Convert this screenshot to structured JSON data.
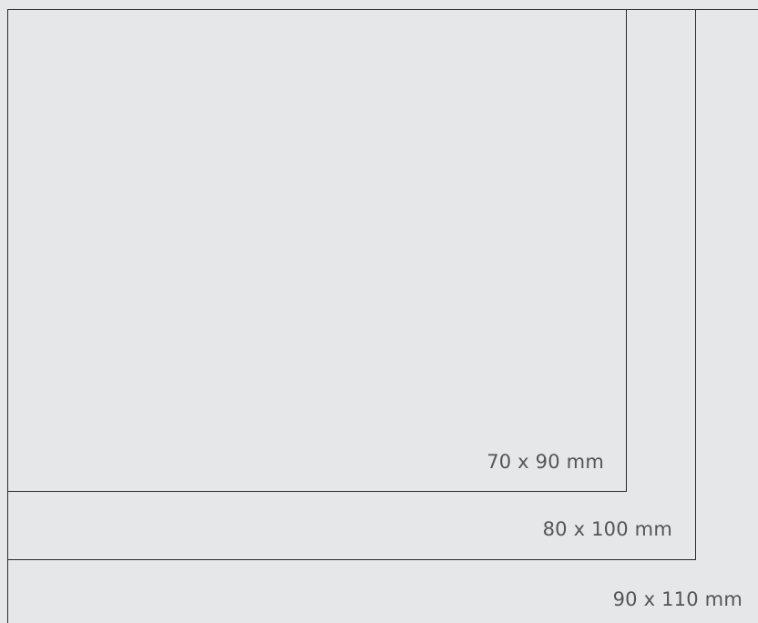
{
  "sizes": [
    {
      "label": "70 x 90 mm"
    },
    {
      "label": "80 x 100 mm"
    },
    {
      "label": "90 x 110 mm"
    }
  ]
}
